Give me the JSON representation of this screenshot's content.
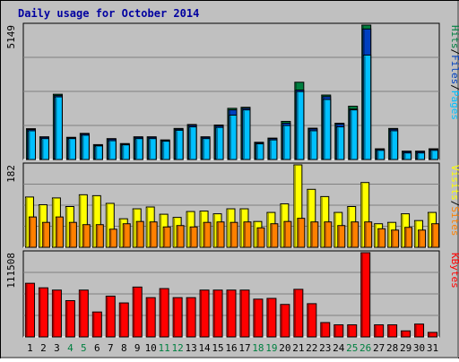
{
  "title": "Daily usage for October 2014",
  "colors": {
    "background": "#C0C0C0",
    "title": "#0000A0",
    "hits": "#008040",
    "files": "#0040C0",
    "pages": "#00C0FF",
    "visits": "#FFFF00",
    "sites": "#FF8000",
    "kbytes": "#FF0000",
    "weekend_label": "#008040",
    "weekday_label": "#000000"
  },
  "chart_data": [
    {
      "type": "bar",
      "panel": "hits-files-pages",
      "ymax_label": "5149",
      "ylim": [
        0,
        5149
      ],
      "legend": [
        "Pages",
        "/",
        "Files",
        "/",
        "Hits"
      ],
      "x": [
        1,
        2,
        3,
        4,
        5,
        6,
        7,
        8,
        9,
        10,
        11,
        12,
        13,
        14,
        15,
        16,
        17,
        18,
        19,
        20,
        21,
        22,
        23,
        24,
        25,
        26,
        27,
        28,
        29,
        30,
        31
      ],
      "series": [
        {
          "name": "Hits",
          "values": [
            1180,
            870,
            2500,
            850,
            1000,
            570,
            800,
            610,
            870,
            870,
            750,
            1190,
            1340,
            870,
            1320,
            1960,
            2000,
            660,
            820,
            1460,
            2960,
            1200,
            2470,
            1390,
            2040,
            5149,
            410,
            1190,
            320,
            320,
            410
          ]
        },
        {
          "name": "Files",
          "values": [
            1150,
            850,
            2450,
            830,
            980,
            550,
            780,
            590,
            850,
            850,
            730,
            1160,
            1310,
            850,
            1290,
            1900,
            1960,
            640,
            800,
            1390,
            2660,
            1170,
            2410,
            1350,
            1930,
            5000,
            390,
            1160,
            300,
            300,
            390
          ]
        },
        {
          "name": "Pages",
          "values": [
            1100,
            800,
            2400,
            800,
            930,
            520,
            720,
            560,
            800,
            800,
            700,
            1120,
            1250,
            800,
            1230,
            1700,
            1900,
            600,
            750,
            1300,
            2600,
            1100,
            2300,
            1250,
            1900,
            4000,
            350,
            1100,
            250,
            250,
            350
          ]
        }
      ]
    },
    {
      "type": "bar",
      "panel": "visits-sites",
      "ymax_label": "182",
      "ylim": [
        0,
        182
      ],
      "legend": [
        "Sites",
        "/",
        "Visits"
      ],
      "x": [
        1,
        2,
        3,
        4,
        5,
        6,
        7,
        8,
        9,
        10,
        11,
        12,
        13,
        14,
        15,
        16,
        17,
        18,
        19,
        20,
        21,
        22,
        23,
        24,
        25,
        26,
        27,
        28,
        29,
        30,
        31
      ],
      "series": [
        {
          "name": "Visits",
          "values": [
            111,
            94,
            109,
            90,
            116,
            114,
            97,
            63,
            85,
            89,
            73,
            66,
            79,
            80,
            74,
            85,
            85,
            57,
            77,
            96,
            182,
            128,
            112,
            77,
            90,
            143,
            52,
            55,
            74,
            59,
            77
          ]
        },
        {
          "name": "Sites",
          "values": [
            67,
            55,
            67,
            55,
            50,
            50,
            40,
            52,
            57,
            56,
            45,
            48,
            45,
            55,
            56,
            55,
            56,
            43,
            52,
            57,
            64,
            56,
            56,
            48,
            56,
            56,
            41,
            38,
            44,
            38,
            52
          ]
        }
      ]
    },
    {
      "type": "bar",
      "panel": "kbytes",
      "ymax_label": "111508",
      "ylim": [
        0,
        111508
      ],
      "legend": [
        "KBytes"
      ],
      "x": [
        1,
        2,
        3,
        4,
        5,
        6,
        7,
        8,
        9,
        10,
        11,
        12,
        13,
        14,
        15,
        16,
        17,
        18,
        19,
        20,
        21,
        22,
        23,
        24,
        25,
        26,
        27,
        28,
        29,
        30,
        31
      ],
      "series": [
        {
          "name": "KBytes",
          "values": [
            71000,
            65000,
            62000,
            48000,
            62000,
            33000,
            54000,
            45000,
            66000,
            52000,
            64000,
            52000,
            52000,
            62000,
            62000,
            62000,
            62000,
            50000,
            51000,
            43000,
            63000,
            44000,
            19000,
            16000,
            16000,
            111508,
            16000,
            16000,
            8000,
            17000,
            6000
          ]
        }
      ]
    }
  ],
  "x_labels": [
    "1",
    "2",
    "3",
    "4",
    "5",
    "6",
    "7",
    "8",
    "9",
    "10",
    "11",
    "12",
    "13",
    "14",
    "15",
    "16",
    "17",
    "18",
    "19",
    "20",
    "21",
    "22",
    "23",
    "24",
    "25",
    "26",
    "27",
    "28",
    "29",
    "30",
    "31"
  ],
  "weekend_days": [
    4,
    5,
    11,
    12,
    18,
    19,
    25,
    26
  ]
}
